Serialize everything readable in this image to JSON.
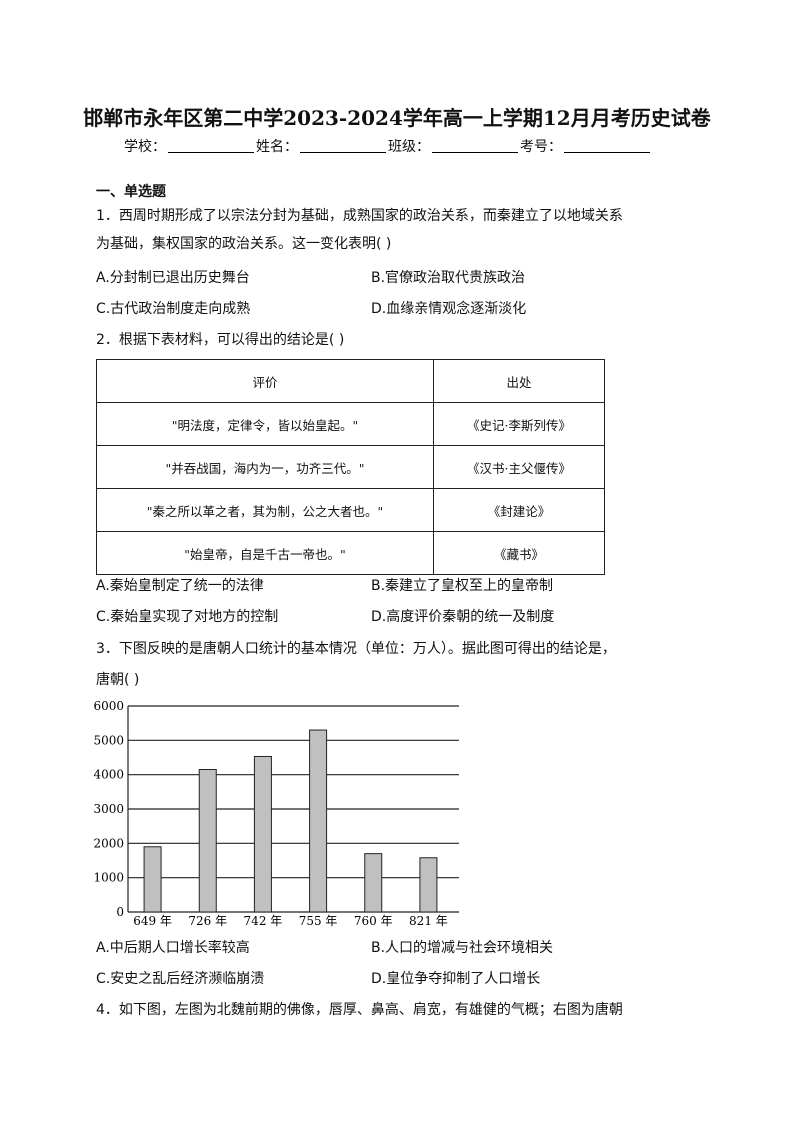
{
  "title": "邯郸市永年区第二中学2023-2024学年高一上学期12月月考历史试卷",
  "info": {
    "school": "学校：",
    "name": "姓名：",
    "class": "班级：",
    "number": "考号："
  },
  "section": "一、单选题",
  "q1": {
    "line1": "1．西周时期形成了以宗法分封为基础，成熟国家的政治关系，而秦建立了以地域关系",
    "line2": "为基础，集权国家的政治关系。这一变化表明(   )",
    "A": "A.分封制已退出历史舞台",
    "B": "B.官僚政治取代贵族政治",
    "C": "C.古代政治制度走向成熟",
    "D": "D.血缘亲情观念逐渐淡化"
  },
  "q2": {
    "line1": "2．根据下表材料，可以得出的结论是(   )",
    "table": {
      "headers": [
        "评价",
        "出处"
      ],
      "rows": [
        [
          "\"明法度，定律令，皆以始皇起。\"",
          "《史记·李斯列传》"
        ],
        [
          "\"并吞战国，海内为一，功齐三代。\"",
          "《汉书·主父偃传》"
        ],
        [
          "\"秦之所以革之者，其为制，公之大者也。\"",
          "《封建论》"
        ],
        [
          "\"始皇帝，自是千古一帝也。\"",
          "《藏书》"
        ]
      ]
    },
    "A": "A.秦始皇制定了统一的法律",
    "B": "B.秦建立了皇权至上的皇帝制",
    "C": "C.秦始皇实现了对地方的控制",
    "D": "D.高度评价秦朝的统一及制度"
  },
  "q3": {
    "line1": "3．下图反映的是唐朝人口统计的基本情况（单位：万人）。据此图可得出的结论是，",
    "line2": "唐朝(   )",
    "A": "A.中后期人口增长率较高",
    "B": "B.人口的增减与社会环境相关",
    "C": "C.安史之乱后经济濒临崩溃",
    "D": "D.皇位争夺抑制了人口增长"
  },
  "chart_data": {
    "type": "bar",
    "categories": [
      "649 年",
      "726 年",
      "742 年",
      "755 年",
      "760 年",
      "821 年"
    ],
    "values": [
      1900,
      4150,
      4530,
      5300,
      1700,
      1580
    ],
    "ylim": [
      0,
      6000
    ],
    "yticks": [
      "0",
      "1000",
      "2000",
      "3000",
      "4000",
      "5000",
      "6000"
    ],
    "grid": true,
    "bar_color": "#c0c0c0"
  },
  "q4": {
    "line1": "4．如下图，左图为北魏前期的佛像，唇厚、鼻高、肩宽，有雄健的气概；右图为唐朝"
  }
}
